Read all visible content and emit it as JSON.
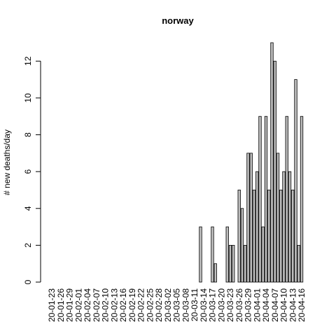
{
  "chart_data": {
    "type": "bar",
    "title": "norway",
    "y_label": "# new deaths/day",
    "categories": [
      "20-01-23",
      null,
      null,
      "20-01-26",
      null,
      null,
      "20-01-29",
      null,
      null,
      "20-02-01",
      null,
      null,
      "20-02-04",
      null,
      null,
      "20-02-07",
      null,
      null,
      "20-02-10",
      null,
      null,
      "20-02-13",
      null,
      null,
      "20-02-16",
      null,
      null,
      "20-02-19",
      null,
      null,
      "20-02-22",
      null,
      null,
      "20-02-25",
      null,
      null,
      "20-02-28",
      null,
      null,
      "20-03-02",
      null,
      null,
      "20-03-05",
      null,
      null,
      "20-03-08",
      null,
      null,
      "20-03-11",
      null,
      null,
      "20-03-14",
      null,
      null,
      "20-03-17",
      null,
      null,
      "20-03-20",
      null,
      null,
      "20-03-23",
      null,
      null,
      "20-03-26",
      null,
      null,
      "20-03-29",
      null,
      null,
      "20-04-01",
      null,
      null,
      "20-04-04",
      null,
      null,
      "20-04-07",
      null,
      null,
      "20-04-10",
      null,
      null,
      "20-04-13",
      null,
      null,
      "20-04-16"
    ],
    "values": [
      0,
      0,
      0,
      0,
      0,
      0,
      0,
      0,
      0,
      0,
      0,
      0,
      0,
      0,
      0,
      0,
      0,
      0,
      0,
      0,
      0,
      0,
      0,
      0,
      0,
      0,
      0,
      0,
      0,
      0,
      0,
      0,
      0,
      0,
      0,
      0,
      0,
      0,
      0,
      0,
      0,
      0,
      0,
      0,
      0,
      0,
      0,
      0,
      0,
      0,
      3,
      0,
      0,
      0,
      3,
      1,
      0,
      0,
      0,
      3,
      2,
      2,
      0,
      5,
      4,
      2,
      7,
      7,
      5,
      6,
      9,
      3,
      9,
      5,
      13,
      12,
      7,
      5,
      6,
      9,
      6,
      5,
      11,
      2,
      9
    ],
    "color": "#bebebe",
    "ylim": [
      0,
      13
    ],
    "yticks": [
      0,
      2,
      4,
      6,
      8,
      10,
      12
    ],
    "grid": false
  }
}
